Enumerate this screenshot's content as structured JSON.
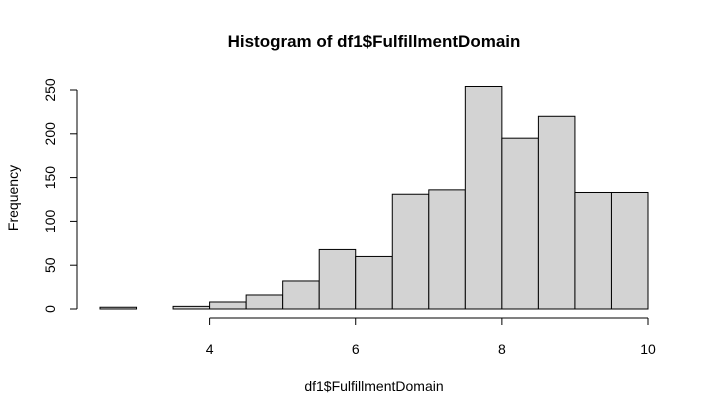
{
  "chart_data": {
    "type": "bar",
    "title": "Histogram of df1$FulfillmentDomain",
    "xlabel": "df1$FulfillmentDomain",
    "ylabel": "Frequency",
    "xlim": [
      2.5,
      10
    ],
    "ylim": [
      0,
      260
    ],
    "x_ticks": [
      "4",
      "6",
      "8",
      "10"
    ],
    "y_ticks": [
      "0",
      "50",
      "100",
      "150",
      "200",
      "250"
    ],
    "bins": [
      {
        "from": 2.5,
        "to": 3.0,
        "count": 2
      },
      {
        "from": 3.0,
        "to": 3.5,
        "count": 0
      },
      {
        "from": 3.5,
        "to": 4.0,
        "count": 3
      },
      {
        "from": 4.0,
        "to": 4.5,
        "count": 8
      },
      {
        "from": 4.5,
        "to": 5.0,
        "count": 16
      },
      {
        "from": 5.0,
        "to": 5.5,
        "count": 32
      },
      {
        "from": 5.5,
        "to": 6.0,
        "count": 68
      },
      {
        "from": 6.0,
        "to": 6.5,
        "count": 60
      },
      {
        "from": 6.5,
        "to": 7.0,
        "count": 131
      },
      {
        "from": 7.0,
        "to": 7.5,
        "count": 136
      },
      {
        "from": 7.5,
        "to": 8.0,
        "count": 254
      },
      {
        "from": 8.0,
        "to": 8.5,
        "count": 195
      },
      {
        "from": 8.5,
        "to": 9.0,
        "count": 220
      },
      {
        "from": 9.0,
        "to": 9.5,
        "count": 133
      },
      {
        "from": 9.5,
        "to": 10.0,
        "count": 133
      }
    ],
    "bar_fill": "#d3d3d3",
    "bar_stroke": "#000000",
    "grid": false,
    "legend": "none"
  }
}
